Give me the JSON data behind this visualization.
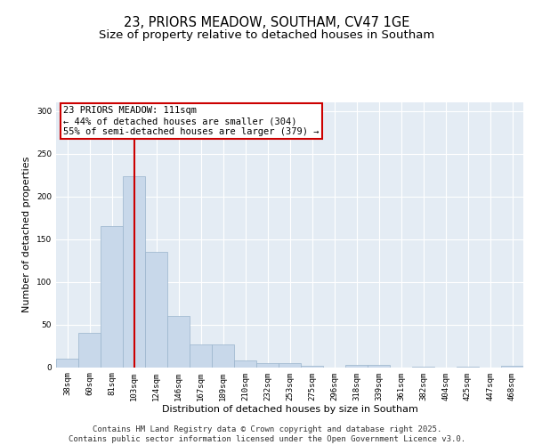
{
  "title_line1": "23, PRIORS MEADOW, SOUTHAM, CV47 1GE",
  "title_line2": "Size of property relative to detached houses in Southam",
  "xlabel": "Distribution of detached houses by size in Southam",
  "ylabel": "Number of detached properties",
  "bar_labels": [
    "38sqm",
    "60sqm",
    "81sqm",
    "103sqm",
    "124sqm",
    "146sqm",
    "167sqm",
    "189sqm",
    "210sqm",
    "232sqm",
    "253sqm",
    "275sqm",
    "296sqm",
    "318sqm",
    "339sqm",
    "361sqm",
    "382sqm",
    "404sqm",
    "425sqm",
    "447sqm",
    "468sqm"
  ],
  "bar_values": [
    10,
    40,
    165,
    223,
    135,
    60,
    27,
    27,
    8,
    5,
    5,
    2,
    0,
    3,
    3,
    0,
    1,
    0,
    1,
    0,
    2
  ],
  "bar_color": "#c8d8ea",
  "bar_edgecolor": "#9ab4cc",
  "background_color": "#e4ecf4",
  "grid_color": "#ffffff",
  "vline_x_index": 3,
  "vline_color": "#cc0000",
  "annotation_text": "23 PRIORS MEADOW: 111sqm\n← 44% of detached houses are smaller (304)\n55% of semi-detached houses are larger (379) →",
  "annotation_box_facecolor": "#ffffff",
  "annotation_box_edgecolor": "#cc0000",
  "ylim": [
    0,
    310
  ],
  "yticks": [
    0,
    50,
    100,
    150,
    200,
    250,
    300
  ],
  "footer_text": "Contains HM Land Registry data © Crown copyright and database right 2025.\nContains public sector information licensed under the Open Government Licence v3.0.",
  "title_fontsize": 10.5,
  "subtitle_fontsize": 9.5,
  "axis_label_fontsize": 8,
  "tick_fontsize": 6.5,
  "annotation_fontsize": 7.5,
  "footer_fontsize": 6.5
}
